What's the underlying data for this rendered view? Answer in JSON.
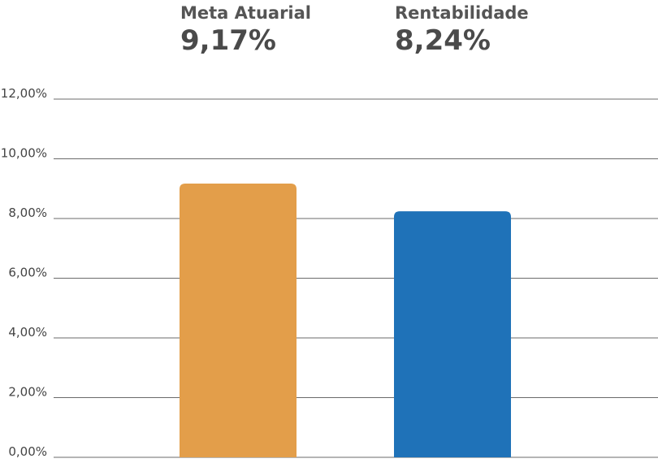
{
  "chart_data": {
    "type": "bar",
    "categories": [
      "Meta Atuarial",
      "Rentabilidade"
    ],
    "values": [
      9.17,
      8.24
    ],
    "value_labels": [
      "9,17%",
      "8,24%"
    ],
    "colors": [
      "#e39e4a",
      "#1f72b8"
    ],
    "ylim": [
      0,
      12
    ],
    "y_ticks": [
      0,
      2,
      4,
      6,
      8,
      10,
      12
    ],
    "y_tick_labels": [
      "0,00%",
      "2,00%",
      "4,00%",
      "6,00%",
      "8,00%",
      "10,00%",
      "12,00%"
    ],
    "grid": true,
    "legend": "none",
    "title": "",
    "xlabel": "",
    "ylabel": ""
  }
}
